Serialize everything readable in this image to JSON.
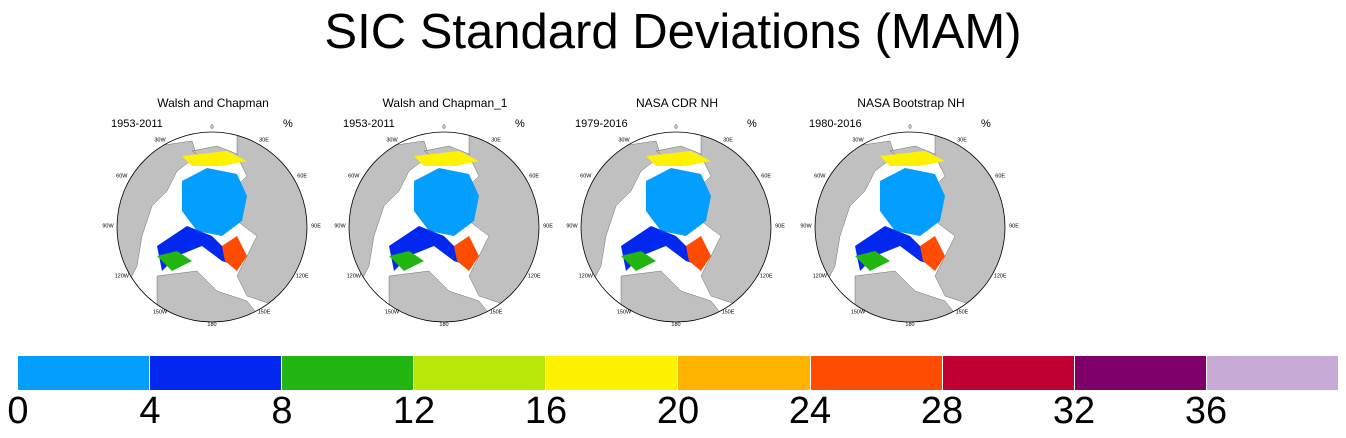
{
  "title": "SIC Standard Deviations (MAM)",
  "panels": [
    {
      "title": "Walsh and Chapman",
      "period": "1953-2011",
      "unit": "%"
    },
    {
      "title": "Walsh and Chapman_1",
      "period": "1953-2011",
      "unit": "%"
    },
    {
      "title": "NASA CDR NH",
      "period": "1979-2016",
      "unit": "%"
    },
    {
      "title": "NASA Bootstrap NH",
      "period": "1980-2016",
      "unit": "%"
    }
  ],
  "lon_labels": [
    "180",
    "150W",
    "150E",
    "120W",
    "120E",
    "90W",
    "90E",
    "60W",
    "60E",
    "30W",
    "30E",
    "0"
  ],
  "colorbar": {
    "colors": [
      "#049eff",
      "#0228f0",
      "#22b612",
      "#b8e80a",
      "#fff200",
      "#ffb200",
      "#ff4c00",
      "#c00033",
      "#80006a",
      "#c8aad6"
    ],
    "ticks": [
      "0",
      "4",
      "8",
      "12",
      "16",
      "20",
      "24",
      "28",
      "32",
      "36"
    ]
  },
  "map_colors": {
    "land": "#c0c0c0",
    "ocean": "#ffffff",
    "ice_low": "#049eff"
  }
}
